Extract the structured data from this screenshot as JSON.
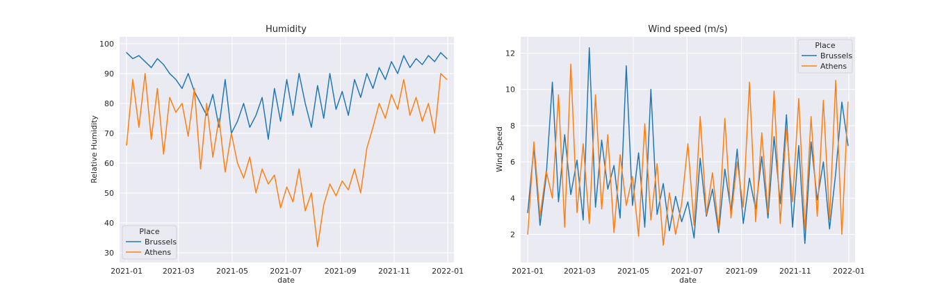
{
  "chart_data": [
    {
      "type": "line",
      "title": "Humidity",
      "xlabel": "date",
      "ylabel": "Relative Humidity",
      "x_range": [
        "2020-12-24",
        "2022-01-08"
      ],
      "ylim": [
        26.7,
        102.3
      ],
      "x_ticks": [
        "2021-01",
        "2021-03",
        "2021-05",
        "2021-07",
        "2021-09",
        "2021-11",
        "2022-01"
      ],
      "y_ticks": [
        30,
        40,
        50,
        60,
        70,
        80,
        90,
        100
      ],
      "grid": true,
      "legend": {
        "title": "Place",
        "placement": "lower-left"
      },
      "series": [
        {
          "name": "Brussels",
          "color": "#1f77b4",
          "points": [
            [
              "2021-01-01",
              97
            ],
            [
              "2021-01-08",
              95
            ],
            [
              "2021-01-15",
              96
            ],
            [
              "2021-01-22",
              94
            ],
            [
              "2021-01-29",
              92
            ],
            [
              "2021-02-05",
              95
            ],
            [
              "2021-02-12",
              93
            ],
            [
              "2021-02-19",
              90
            ],
            [
              "2021-02-26",
              88
            ],
            [
              "2021-03-05",
              85
            ],
            [
              "2021-03-12",
              90
            ],
            [
              "2021-03-19",
              84
            ],
            [
              "2021-03-26",
              80
            ],
            [
              "2021-04-02",
              76
            ],
            [
              "2021-04-09",
              83
            ],
            [
              "2021-04-16",
              72
            ],
            [
              "2021-04-23",
              88
            ],
            [
              "2021-04-30",
              70
            ],
            [
              "2021-05-07",
              74
            ],
            [
              "2021-05-14",
              80
            ],
            [
              "2021-05-21",
              72
            ],
            [
              "2021-05-28",
              76
            ],
            [
              "2021-06-04",
              82
            ],
            [
              "2021-06-11",
              68
            ],
            [
              "2021-06-18",
              85
            ],
            [
              "2021-06-25",
              74
            ],
            [
              "2021-07-02",
              88
            ],
            [
              "2021-07-09",
              76
            ],
            [
              "2021-07-16",
              90
            ],
            [
              "2021-07-23",
              80
            ],
            [
              "2021-07-30",
              72
            ],
            [
              "2021-08-06",
              86
            ],
            [
              "2021-08-13",
              75
            ],
            [
              "2021-08-20",
              90
            ],
            [
              "2021-08-27",
              78
            ],
            [
              "2021-09-03",
              84
            ],
            [
              "2021-09-10",
              76
            ],
            [
              "2021-09-17",
              88
            ],
            [
              "2021-09-24",
              82
            ],
            [
              "2021-10-01",
              90
            ],
            [
              "2021-10-08",
              85
            ],
            [
              "2021-10-15",
              92
            ],
            [
              "2021-10-22",
              88
            ],
            [
              "2021-10-29",
              94
            ],
            [
              "2021-11-05",
              90
            ],
            [
              "2021-11-12",
              96
            ],
            [
              "2021-11-19",
              92
            ],
            [
              "2021-11-26",
              95
            ],
            [
              "2021-12-03",
              93
            ],
            [
              "2021-12-10",
              96
            ],
            [
              "2021-12-17",
              94
            ],
            [
              "2021-12-24",
              97
            ],
            [
              "2021-12-31",
              95
            ]
          ]
        },
        {
          "name": "Athens",
          "color": "#ff7f0e",
          "points": [
            [
              "2021-01-01",
              66
            ],
            [
              "2021-01-08",
              88
            ],
            [
              "2021-01-15",
              72
            ],
            [
              "2021-01-22",
              90
            ],
            [
              "2021-01-29",
              68
            ],
            [
              "2021-02-05",
              85
            ],
            [
              "2021-02-12",
              63
            ],
            [
              "2021-02-19",
              82
            ],
            [
              "2021-02-26",
              77
            ],
            [
              "2021-03-05",
              80
            ],
            [
              "2021-03-12",
              69
            ],
            [
              "2021-03-19",
              85
            ],
            [
              "2021-03-26",
              58
            ],
            [
              "2021-04-02",
              80
            ],
            [
              "2021-04-09",
              62
            ],
            [
              "2021-04-16",
              75
            ],
            [
              "2021-04-23",
              57
            ],
            [
              "2021-04-30",
              70
            ],
            [
              "2021-05-07",
              60
            ],
            [
              "2021-05-14",
              55
            ],
            [
              "2021-05-21",
              62
            ],
            [
              "2021-05-28",
              50
            ],
            [
              "2021-06-04",
              58
            ],
            [
              "2021-06-11",
              53
            ],
            [
              "2021-06-18",
              56
            ],
            [
              "2021-06-25",
              45
            ],
            [
              "2021-07-02",
              52
            ],
            [
              "2021-07-09",
              47
            ],
            [
              "2021-07-16",
              58
            ],
            [
              "2021-07-23",
              44
            ],
            [
              "2021-07-30",
              50
            ],
            [
              "2021-08-06",
              32
            ],
            [
              "2021-08-13",
              46
            ],
            [
              "2021-08-20",
              53
            ],
            [
              "2021-08-27",
              49
            ],
            [
              "2021-09-03",
              54
            ],
            [
              "2021-09-10",
              51
            ],
            [
              "2021-09-17",
              58
            ],
            [
              "2021-09-24",
              50
            ],
            [
              "2021-10-01",
              65
            ],
            [
              "2021-10-08",
              72
            ],
            [
              "2021-10-15",
              80
            ],
            [
              "2021-10-22",
              75
            ],
            [
              "2021-10-29",
              83
            ],
            [
              "2021-11-05",
              78
            ],
            [
              "2021-11-12",
              88
            ],
            [
              "2021-11-19",
              76
            ],
            [
              "2021-11-26",
              82
            ],
            [
              "2021-12-03",
              74
            ],
            [
              "2021-12-10",
              80
            ],
            [
              "2021-12-17",
              70
            ],
            [
              "2021-12-24",
              90
            ],
            [
              "2021-12-31",
              88
            ]
          ]
        }
      ]
    },
    {
      "type": "line",
      "title": "Wind speed (m/s)",
      "xlabel": "date",
      "ylabel": "Wind Speed",
      "x_range": [
        "2020-12-24",
        "2022-01-08"
      ],
      "ylim": [
        0.45,
        12.9
      ],
      "x_ticks": [
        "2021-01",
        "2021-03",
        "2021-05",
        "2021-07",
        "2021-09",
        "2021-11",
        "2022-01"
      ],
      "y_ticks": [
        2,
        4,
        6,
        8,
        10,
        12
      ],
      "grid": true,
      "legend": {
        "title": "Place",
        "placement": "upper-right"
      },
      "series": [
        {
          "name": "Brussels",
          "color": "#1f77b4",
          "points": [
            [
              "2021-01-01",
              3.2
            ],
            [
              "2021-01-08",
              6.8
            ],
            [
              "2021-01-15",
              2.5
            ],
            [
              "2021-01-22",
              5.2
            ],
            [
              "2021-01-29",
              10.4
            ],
            [
              "2021-02-05",
              3.8
            ],
            [
              "2021-02-12",
              7.5
            ],
            [
              "2021-02-19",
              4.2
            ],
            [
              "2021-02-26",
              6.1
            ],
            [
              "2021-03-05",
              2.8
            ],
            [
              "2021-03-12",
              12.3
            ],
            [
              "2021-03-19",
              3.5
            ],
            [
              "2021-03-26",
              7.2
            ],
            [
              "2021-04-02",
              4.5
            ],
            [
              "2021-04-09",
              5.8
            ],
            [
              "2021-04-16",
              2.9
            ],
            [
              "2021-04-23",
              11.3
            ],
            [
              "2021-04-30",
              3.6
            ],
            [
              "2021-05-07",
              6.5
            ],
            [
              "2021-05-14",
              2.4
            ],
            [
              "2021-05-21",
              10.0
            ],
            [
              "2021-05-28",
              3.1
            ],
            [
              "2021-06-04",
              4.8
            ],
            [
              "2021-06-11",
              2.2
            ],
            [
              "2021-06-18",
              4.1
            ],
            [
              "2021-06-25",
              2.7
            ],
            [
              "2021-07-02",
              3.8
            ],
            [
              "2021-07-09",
              1.8
            ],
            [
              "2021-07-16",
              6.2
            ],
            [
              "2021-07-23",
              3.0
            ],
            [
              "2021-07-30",
              4.5
            ],
            [
              "2021-08-06",
              2.1
            ],
            [
              "2021-08-13",
              5.6
            ],
            [
              "2021-08-20",
              3.3
            ],
            [
              "2021-08-27",
              6.7
            ],
            [
              "2021-09-03",
              2.6
            ],
            [
              "2021-09-10",
              5.1
            ],
            [
              "2021-09-17",
              3.4
            ],
            [
              "2021-09-24",
              6.3
            ],
            [
              "2021-10-01",
              2.9
            ],
            [
              "2021-10-08",
              7.4
            ],
            [
              "2021-10-15",
              3.7
            ],
            [
              "2021-10-22",
              8.6
            ],
            [
              "2021-10-29",
              2.4
            ],
            [
              "2021-11-05",
              6.9
            ],
            [
              "2021-11-12",
              1.5
            ],
            [
              "2021-11-19",
              7.1
            ],
            [
              "2021-11-26",
              3.9
            ],
            [
              "2021-12-03",
              6.0
            ],
            [
              "2021-12-10",
              2.3
            ],
            [
              "2021-12-17",
              5.4
            ],
            [
              "2021-12-24",
              9.3
            ],
            [
              "2021-12-31",
              6.9
            ]
          ]
        },
        {
          "name": "Athens",
          "color": "#ff7f0e",
          "points": [
            [
              "2021-01-01",
              2.0
            ],
            [
              "2021-01-08",
              7.1
            ],
            [
              "2021-01-15",
              3.0
            ],
            [
              "2021-01-22",
              5.5
            ],
            [
              "2021-01-29",
              4.0
            ],
            [
              "2021-02-05",
              9.7
            ],
            [
              "2021-02-12",
              2.4
            ],
            [
              "2021-02-19",
              11.4
            ],
            [
              "2021-02-26",
              3.2
            ],
            [
              "2021-03-05",
              7.0
            ],
            [
              "2021-03-12",
              2.6
            ],
            [
              "2021-03-19",
              9.7
            ],
            [
              "2021-03-26",
              3.4
            ],
            [
              "2021-04-02",
              7.5
            ],
            [
              "2021-04-09",
              2.1
            ],
            [
              "2021-04-16",
              6.4
            ],
            [
              "2021-04-23",
              3.6
            ],
            [
              "2021-04-30",
              5.2
            ],
            [
              "2021-05-07",
              1.9
            ],
            [
              "2021-05-14",
              8.1
            ],
            [
              "2021-05-21",
              2.8
            ],
            [
              "2021-05-28",
              5.9
            ],
            [
              "2021-06-04",
              1.4
            ],
            [
              "2021-06-11",
              4.3
            ],
            [
              "2021-06-18",
              2.0
            ],
            [
              "2021-06-25",
              3.7
            ],
            [
              "2021-07-02",
              7.0
            ],
            [
              "2021-07-09",
              2.5
            ],
            [
              "2021-07-16",
              8.5
            ],
            [
              "2021-07-23",
              3.1
            ],
            [
              "2021-07-30",
              5.4
            ],
            [
              "2021-08-06",
              2.3
            ],
            [
              "2021-08-13",
              8.4
            ],
            [
              "2021-08-20",
              2.9
            ],
            [
              "2021-08-27",
              6.0
            ],
            [
              "2021-09-03",
              3.5
            ],
            [
              "2021-09-10",
              10.4
            ],
            [
              "2021-09-17",
              2.7
            ],
            [
              "2021-09-24",
              7.6
            ],
            [
              "2021-10-01",
              3.2
            ],
            [
              "2021-10-08",
              9.9
            ],
            [
              "2021-10-15",
              2.6
            ],
            [
              "2021-10-22",
              7.9
            ],
            [
              "2021-10-29",
              3.8
            ],
            [
              "2021-11-05",
              9.5
            ],
            [
              "2021-11-12",
              2.2
            ],
            [
              "2021-11-19",
              8.5
            ],
            [
              "2021-11-26",
              3.0
            ],
            [
              "2021-12-03",
              9.4
            ],
            [
              "2021-12-10",
              2.8
            ],
            [
              "2021-12-17",
              10.5
            ],
            [
              "2021-12-24",
              2.0
            ],
            [
              "2021-12-31",
              9.3
            ]
          ]
        }
      ]
    }
  ],
  "colors": {
    "plot_background": "#eaeaf2",
    "grid": "#ffffff",
    "text": "#262626"
  }
}
